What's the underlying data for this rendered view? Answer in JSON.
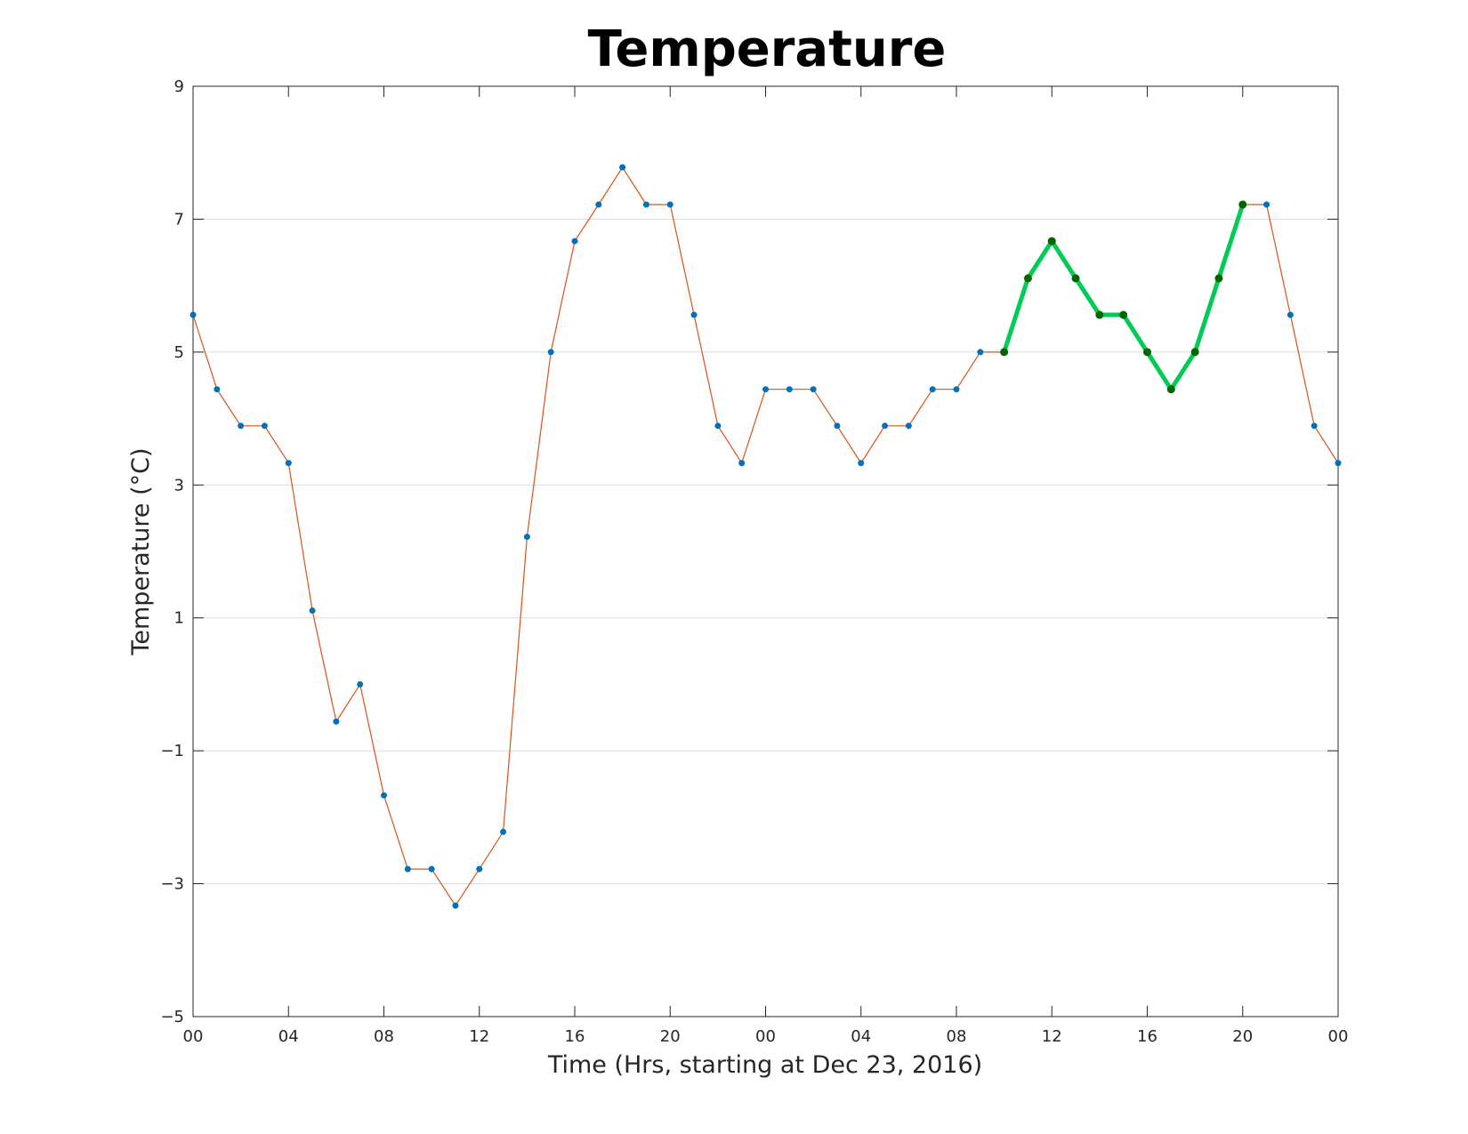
{
  "chart_data": {
    "type": "line",
    "title": "Temperature",
    "xlabel": "Time (Hrs, starting at Dec 23, 2016)",
    "ylabel": "Temperature (°C)",
    "xlim": [
      0,
      48
    ],
    "ylim": [
      -5,
      9
    ],
    "xticks": [
      {
        "value": 0,
        "label": "00"
      },
      {
        "value": 4,
        "label": "04"
      },
      {
        "value": 8,
        "label": "08"
      },
      {
        "value": 12,
        "label": "12"
      },
      {
        "value": 16,
        "label": "16"
      },
      {
        "value": 20,
        "label": "20"
      },
      {
        "value": 24,
        "label": "00"
      },
      {
        "value": 28,
        "label": "04"
      },
      {
        "value": 32,
        "label": "08"
      },
      {
        "value": 36,
        "label": "12"
      },
      {
        "value": 40,
        "label": "16"
      },
      {
        "value": 44,
        "label": "20"
      },
      {
        "value": 48,
        "label": "00"
      }
    ],
    "yticks": [
      {
        "value": -5,
        "label": "−5"
      },
      {
        "value": -3,
        "label": "−3"
      },
      {
        "value": -1,
        "label": "−1"
      },
      {
        "value": 1,
        "label": "1"
      },
      {
        "value": 3,
        "label": "3"
      },
      {
        "value": 5,
        "label": "5"
      },
      {
        "value": 7,
        "label": "7"
      },
      {
        "value": 9,
        "label": "9"
      }
    ],
    "grid": "horizontal",
    "series": [
      {
        "style": "thin-line-with-dots",
        "line_color": "#d95319",
        "marker_color": "#0072bd",
        "x": [
          0,
          1,
          2,
          3,
          4,
          5,
          6,
          7,
          8,
          9,
          10,
          11,
          12,
          13,
          14,
          15,
          16,
          17,
          18,
          19,
          20,
          21,
          22,
          23,
          24,
          25,
          26,
          27,
          28,
          29,
          30,
          31,
          32,
          33,
          34,
          35,
          36,
          37,
          38,
          39,
          40,
          41,
          42,
          43,
          44,
          45,
          46,
          47,
          48
        ],
        "y": [
          5.56,
          4.44,
          3.89,
          3.89,
          3.33,
          1.11,
          -0.56,
          0,
          -1.67,
          -2.78,
          -2.78,
          -3.33,
          -2.78,
          -2.22,
          2.22,
          5,
          6.67,
          7.22,
          7.78,
          7.22,
          7.22,
          5.56,
          3.89,
          3.33,
          4.44,
          4.44,
          4.44,
          3.89,
          3.33,
          3.89,
          3.89,
          4.44,
          4.44,
          5,
          5,
          6.11,
          6.67,
          6.11,
          5.56,
          5.56,
          5,
          4.44,
          5,
          6.11,
          7.22,
          7.22,
          5.56,
          3.89,
          3.33
        ]
      },
      {
        "style": "thick-highlight",
        "line_color": "#00cc55",
        "marker_color": "#006400",
        "x": [
          34,
          35,
          36,
          37,
          38,
          39,
          40,
          41,
          42,
          43,
          44
        ],
        "y": [
          5,
          6.11,
          6.67,
          6.11,
          5.56,
          5.56,
          5,
          4.44,
          5,
          6.11,
          7.22
        ]
      }
    ]
  }
}
